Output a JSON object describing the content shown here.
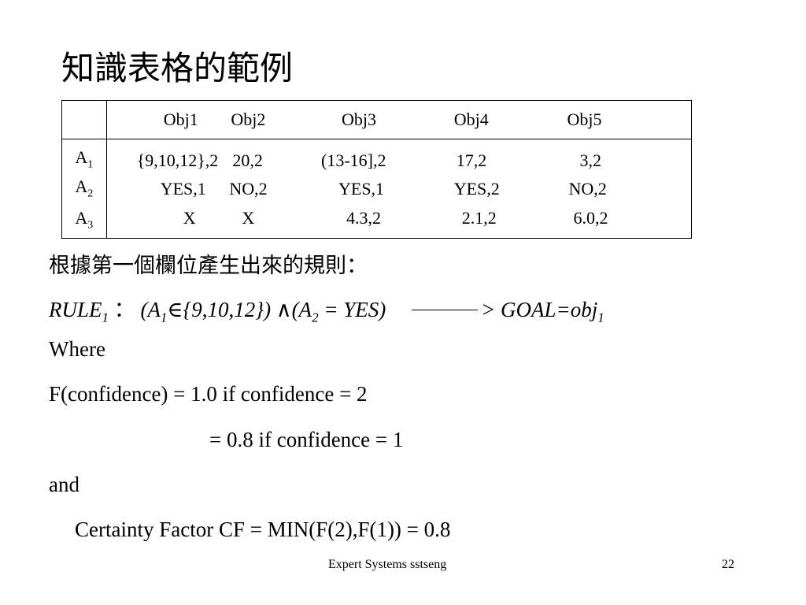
{
  "title": "知識表格的範例",
  "table": {
    "headers": [
      "Obj1",
      "Obj2",
      "Obj3",
      "Obj4",
      "Obj5"
    ],
    "rows": [
      {
        "attr": "A",
        "sub": "1",
        "cells": [
          "{9,10,12},2",
          "20,2",
          "(13-16],2",
          "17,2",
          "3,2"
        ]
      },
      {
        "attr": "A",
        "sub": "2",
        "cells": [
          "YES,1",
          "NO,2",
          "YES,1",
          "YES,2",
          "NO,2"
        ]
      },
      {
        "attr": "A",
        "sub": "3",
        "cells": [
          "X",
          "X",
          "4.3,2",
          "2.1,2",
          "6.0,2"
        ]
      }
    ]
  },
  "rules_intro": "根據第一個欄位產生出來的規則：",
  "rule": {
    "name": "RULE",
    "name_sub": "1",
    "sep": "：",
    "open": "(A",
    "a1_sub": "1",
    "set": "∈{9,10,12}) ∧(A",
    "a2_sub": "2",
    "eq": " = YES)",
    "consequent": "> GOAL=obj",
    "obj_sub": "1"
  },
  "where": "Where",
  "confidence_line1": "F(confidence) = 1.0 if confidence = 2",
  "confidence_line2": "= 0.8 if confidence = 1",
  "and": "and",
  "cf_line": "Certainty Factor CF = MIN(F(2),F(1)) = 0.8",
  "footer": {
    "text": "Expert Systems sstseng",
    "page": "22"
  }
}
